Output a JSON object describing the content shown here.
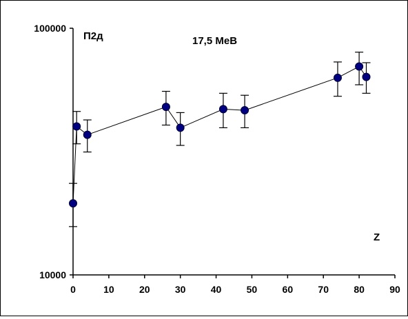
{
  "chart_data": {
    "type": "scatter",
    "annotations": {
      "top_left": "П2д",
      "top_center": "17,5 МеВ",
      "axis_name": "Z"
    },
    "x_axis": {
      "min": 0,
      "max": 90,
      "ticks": [
        0,
        10,
        20,
        30,
        40,
        50,
        60,
        70,
        80,
        90
      ],
      "tick_labels": [
        "0",
        "10",
        "20",
        "30",
        "40",
        "50",
        "60",
        "70",
        "80",
        "90"
      ]
    },
    "y_axis": {
      "scale": "log",
      "min": 10000,
      "max": 100000,
      "tick_labels": [
        "10000",
        "100000"
      ]
    },
    "grid": false,
    "legend": "none",
    "series": [
      {
        "color": "#000080",
        "line_color": "#000000",
        "points": [
          {
            "x": 0,
            "y": 19500,
            "err_low": 15700,
            "err_high": 23500
          },
          {
            "x": 1,
            "y": 40000,
            "err_low": 34000,
            "err_high": 46000
          },
          {
            "x": 4,
            "y": 37000,
            "err_low": 31500,
            "err_high": 42500
          },
          {
            "x": 26,
            "y": 48000,
            "err_low": 40500,
            "err_high": 55500
          },
          {
            "x": 30,
            "y": 39500,
            "err_low": 33500,
            "err_high": 45500
          },
          {
            "x": 42,
            "y": 47000,
            "err_low": 39500,
            "err_high": 54500
          },
          {
            "x": 48,
            "y": 46500,
            "err_low": 39500,
            "err_high": 53500
          },
          {
            "x": 74,
            "y": 63000,
            "err_low": 53000,
            "err_high": 73000
          },
          {
            "x": 80,
            "y": 70000,
            "err_low": 59000,
            "err_high": 80000
          },
          {
            "x": 82,
            "y": 63500,
            "err_low": 54500,
            "err_high": 72500
          }
        ]
      }
    ]
  }
}
